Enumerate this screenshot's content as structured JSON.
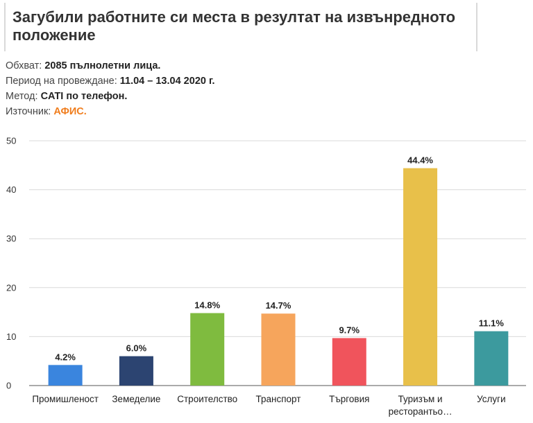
{
  "header": {
    "title": "Загубили работните си места в резултат на извънредното положение"
  },
  "meta": [
    {
      "key": "Обхват:",
      "value": "2085 пълнолетни лица.",
      "accent": false
    },
    {
      "key": "Период на провеждане:",
      "value": "11.04 – 13.04 2020 г.",
      "accent": false
    },
    {
      "key": "Метод:",
      "value": "CATI по телефон.",
      "accent": false
    },
    {
      "key": "Източник:",
      "value": "АФИС.",
      "accent": true
    }
  ],
  "colors": {
    "accent": "#f07d1d",
    "grid": "#d9d9d9"
  },
  "chart_data": {
    "type": "bar",
    "title": "",
    "xlabel": "",
    "ylabel": "",
    "ylim": [
      0,
      50
    ],
    "yticks": [
      0,
      10,
      20,
      30,
      40,
      50
    ],
    "grid": true,
    "legend": "none",
    "categories": [
      "Промишленост",
      "Земеделие",
      "Строителство",
      "Транспорт",
      "Търговия",
      [
        "Туризъм и",
        "ресторантьо…"
      ],
      "Услуги"
    ],
    "values": [
      4.2,
      6.0,
      14.8,
      14.7,
      9.7,
      44.4,
      11.1
    ],
    "labels": [
      "4.2%",
      "6.0%",
      "14.8%",
      "14.7%",
      "9.7%",
      "44.4%",
      "11.1%"
    ],
    "bar_colors": [
      "#3a85de",
      "#2c4471",
      "#7fbb3f",
      "#f6a55c",
      "#f0545c",
      "#e8c04a",
      "#3c9a9e"
    ]
  }
}
